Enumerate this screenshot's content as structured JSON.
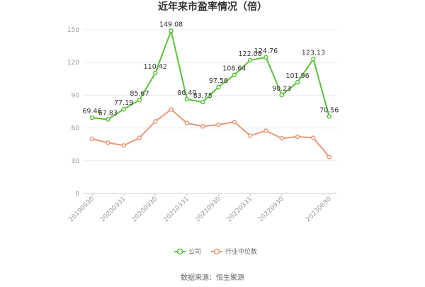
{
  "chart_data": {
    "type": "line",
    "title": "近年来市盈率情况（倍）",
    "x": [
      "20190930",
      "20191231",
      "20200331",
      "20200630",
      "20200930",
      "20201231",
      "20210331",
      "20210630",
      "20210930",
      "20211231",
      "20220331",
      "20220630",
      "20220930",
      "20221231",
      "20230331",
      "20230630",
      "20230930"
    ],
    "x_tick_labels": [
      "20190930",
      "20200331",
      "20200930",
      "20210331",
      "20210930",
      "20220331",
      "20220930",
      "20230630"
    ],
    "x_tick_indices": [
      0,
      2,
      4,
      6,
      8,
      10,
      12,
      15
    ],
    "y_ticks": [
      0,
      30,
      60,
      90,
      120,
      150
    ],
    "ylim": [
      0,
      150
    ],
    "grid": true,
    "legend_position": "bottom",
    "series": [
      {
        "name": "公司",
        "color": "#5ac13a",
        "values": [
          69.46,
          67.83,
          77.19,
          85.67,
          110.42,
          149.08,
          86.4,
          83.75,
          97.56,
          108.64,
          122.08,
          124.76,
          90.23,
          101.96,
          123.13,
          70.56,
          null
        ],
        "labels": [
          "69.46",
          "67.83",
          "77.19",
          "85.67",
          "110.42",
          "149.08",
          "86.40",
          "83.75",
          "97.56",
          "108.64",
          "122.08",
          "124.76",
          "90.23",
          "101.96",
          "123.13",
          "70.56",
          null
        ]
      },
      {
        "name": "行业中位数",
        "color": "#e8987a",
        "values": [
          50,
          46.5,
          44,
          51,
          66,
          77,
          64.5,
          61.5,
          63,
          65.5,
          53,
          57.5,
          50.5,
          52,
          51,
          33.5,
          null
        ]
      }
    ]
  },
  "source_text": "数据来源：恒生聚源"
}
